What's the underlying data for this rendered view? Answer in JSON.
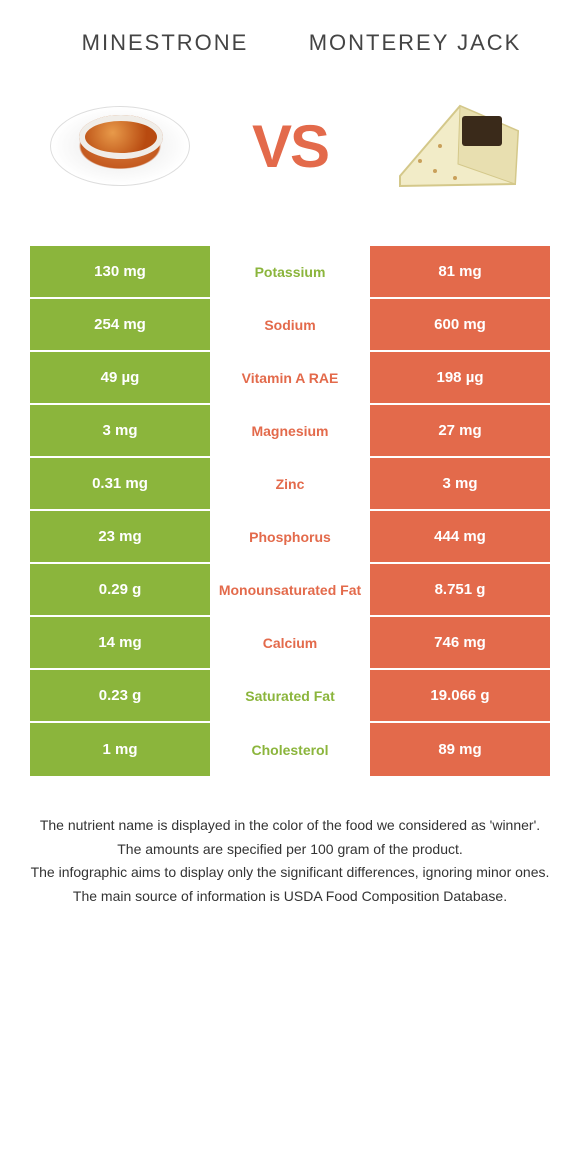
{
  "header": {
    "left_title": "Minestrone",
    "right_title": "Monterey Jack",
    "vs_label": "VS"
  },
  "colors": {
    "left": "#8bb53c",
    "right": "#e36a4b",
    "background": "#ffffff"
  },
  "table": {
    "rows": [
      {
        "left": "130 mg",
        "label": "Potassium",
        "right": "81 mg",
        "winner": "left"
      },
      {
        "left": "254 mg",
        "label": "Sodium",
        "right": "600 mg",
        "winner": "right"
      },
      {
        "left": "49 µg",
        "label": "Vitamin A RAE",
        "right": "198 µg",
        "winner": "right"
      },
      {
        "left": "3 mg",
        "label": "Magnesium",
        "right": "27 mg",
        "winner": "right"
      },
      {
        "left": "0.31 mg",
        "label": "Zinc",
        "right": "3 mg",
        "winner": "right"
      },
      {
        "left": "23 mg",
        "label": "Phosphorus",
        "right": "444 mg",
        "winner": "right"
      },
      {
        "left": "0.29 g",
        "label": "Monounsaturated Fat",
        "right": "8.751 g",
        "winner": "right"
      },
      {
        "left": "14 mg",
        "label": "Calcium",
        "right": "746 mg",
        "winner": "right"
      },
      {
        "left": "0.23 g",
        "label": "Saturated Fat",
        "right": "19.066 g",
        "winner": "left"
      },
      {
        "left": "1 mg",
        "label": "Cholesterol",
        "right": "89 mg",
        "winner": "left"
      }
    ]
  },
  "footnotes": [
    "The nutrient name is displayed in the color of the food we considered as 'winner'.",
    "The amounts are specified per 100 gram of the product.",
    "The infographic aims to display only the significant differences, ignoring minor ones.",
    "The main source of information is USDA Food Composition Database."
  ]
}
